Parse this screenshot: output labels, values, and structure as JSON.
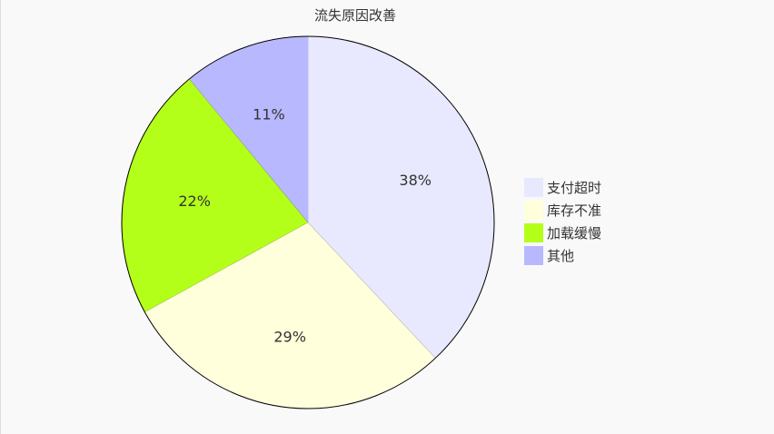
{
  "chart_data": {
    "type": "pie",
    "title": "流失原因改善",
    "categories": [
      "支付超时",
      "库存不准",
      "加载缓慢",
      "其他"
    ],
    "values": [
      38,
      29,
      22,
      11
    ],
    "labels": [
      "38%",
      "29%",
      "22%",
      "11%"
    ],
    "colors": [
      "#e8e8ff",
      "#ffffdc",
      "#b4ff19",
      "#b8b8ff"
    ],
    "legend_position": "right"
  }
}
